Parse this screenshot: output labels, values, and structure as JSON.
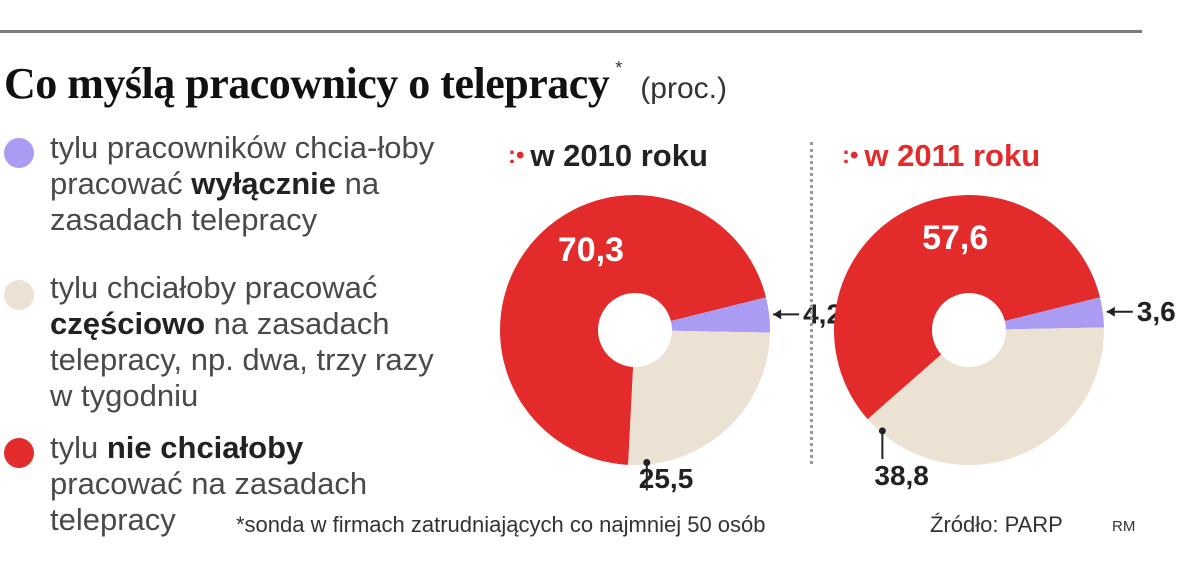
{
  "header": {
    "title": "Co myślą pracownicy o telepracy",
    "asterisk": "*",
    "unit": "(proc.)"
  },
  "legend": [
    {
      "color": "#a99cf2",
      "pre": "tylu pracowników chcia-łoby pracować ",
      "bold": "wyłącznie",
      "post": " na zasadach telepracy"
    },
    {
      "color": "#ece2d3",
      "pre": "tylu chciałoby pracować ",
      "bold": "częściowo",
      "post": " na zasadach telepracy, np. dwa, trzy razy w tygodniu"
    },
    {
      "color": "#e32b2b",
      "pre": "tylu ",
      "bold": "nie chciałoby",
      "post": " pracować na zasadach telepracy"
    }
  ],
  "colors": {
    "exclusively": "#a99cf2",
    "partially": "#ece2d3",
    "no": "#e32b2b",
    "text": "#222222"
  },
  "chart_data": [
    {
      "type": "pie",
      "title": "w 2010 roku",
      "labels": [
        "70,3",
        "4,2",
        "25,5"
      ],
      "slices": [
        {
          "name": "nie chciałoby",
          "value": 70.3
        },
        {
          "name": "wyłącznie",
          "value": 4.2
        },
        {
          "name": "częściowo",
          "value": 25.5
        }
      ]
    },
    {
      "type": "pie",
      "title": "w 2011 roku",
      "labels": [
        "57,6",
        "3,6",
        "38,8"
      ],
      "slices": [
        {
          "name": "nie chciałoby",
          "value": 57.6
        },
        {
          "name": "wyłącznie",
          "value": 3.6
        },
        {
          "name": "częściowo",
          "value": 38.8
        }
      ]
    }
  ],
  "footnote": "*sonda w firmach zatrudniających co najmniej 50 osób",
  "source": "Źródło: PARP",
  "author": "RM"
}
